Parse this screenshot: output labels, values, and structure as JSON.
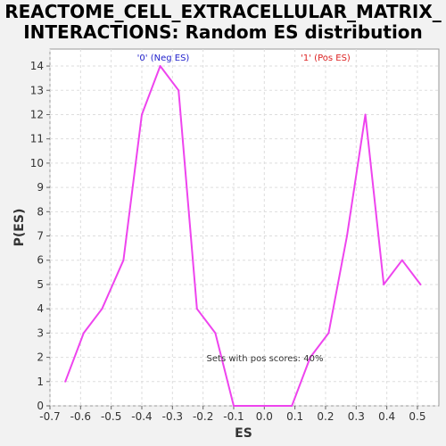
{
  "chart_data": {
    "type": "line",
    "title_line1": "REACTOME_CELL_EXTRACELLULAR_MATRIX_",
    "title_line2": "INTERACTIONS: Random ES distribution",
    "xlabel": "ES",
    "ylabel": "P(ES)",
    "xlim": [
      -0.7,
      0.57
    ],
    "ylim": [
      0,
      14.7
    ],
    "x_ticks": [
      "-0.7",
      "-0.6",
      "-0.5",
      "-0.4",
      "-0.3",
      "-0.2",
      "-0.1",
      "0.0",
      "0.1",
      "0.2",
      "0.3",
      "0.4",
      "0.5"
    ],
    "y_ticks": [
      "0",
      "1",
      "2",
      "3",
      "4",
      "5",
      "6",
      "7",
      "8",
      "9",
      "10",
      "11",
      "12",
      "13",
      "14"
    ],
    "grid": true,
    "series": [
      {
        "color": "#ee44ee",
        "x": [
          -0.65,
          -0.59,
          -0.53,
          -0.46,
          -0.4,
          -0.34,
          -0.28,
          -0.22,
          -0.16,
          -0.1,
          -0.04,
          0.03,
          0.09,
          0.15,
          0.21,
          0.27,
          0.33,
          0.39,
          0.45,
          0.51
        ],
        "y": [
          1,
          3,
          4,
          6,
          12,
          14,
          13,
          4,
          3,
          0,
          0,
          0,
          0,
          2,
          3,
          7,
          12,
          5,
          6,
          5
        ]
      }
    ],
    "annotations": {
      "neg_label": "'0' (Neg ES)",
      "neg_color": "#2222cc",
      "pos_label": "'1' (Pos ES)",
      "pos_color": "#dd2222",
      "pos_scores_text": "Sets with pos scores: 40%"
    }
  }
}
